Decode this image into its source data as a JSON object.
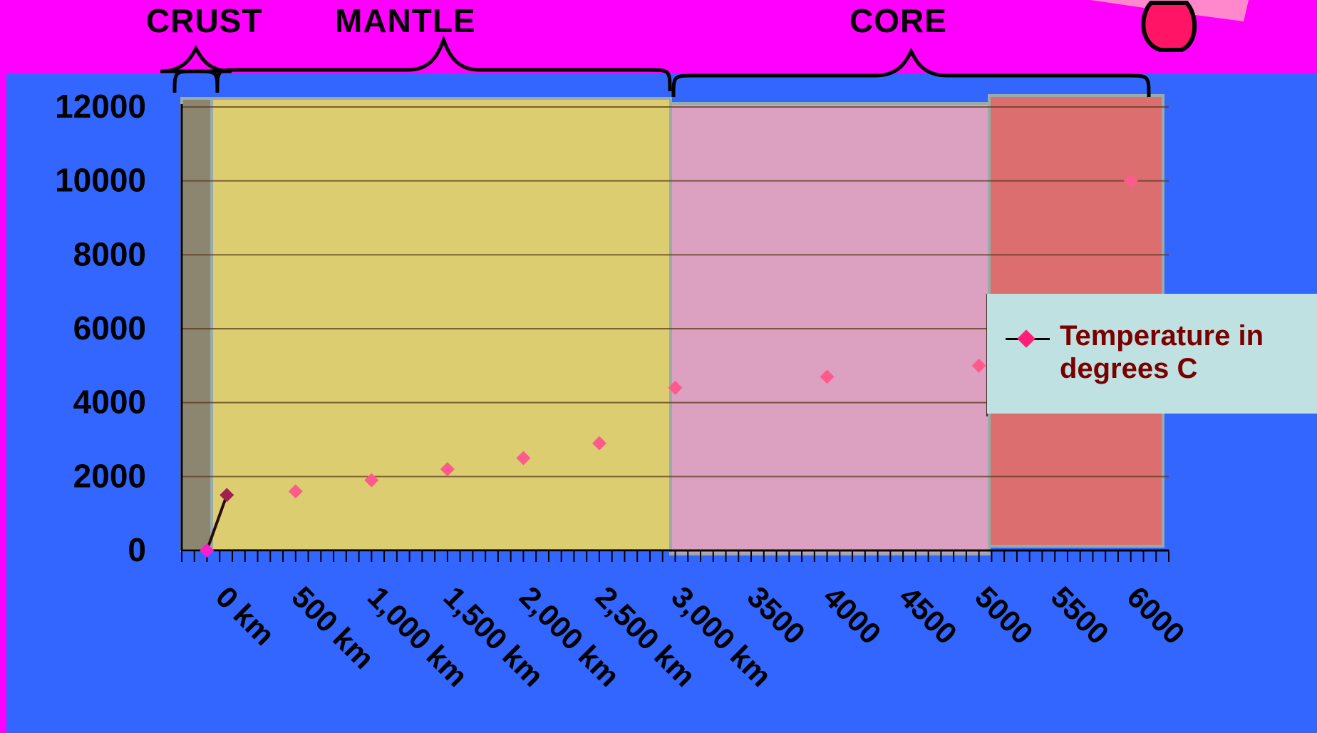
{
  "layers": [
    {
      "name": "CRUST"
    },
    {
      "name": "MANTLE"
    },
    {
      "name": "CORE"
    }
  ],
  "legend": {
    "label": "Temperature in degrees C",
    "color": "#ff1e78"
  },
  "colors": {
    "background": "#3366ff",
    "banner": "#ff00ff",
    "crust_band": "#8c8570",
    "mantle_band": "#dccd70",
    "outer_core_band": "#dca0c0",
    "inner_core_band": "#dc6e70",
    "marker": "#ff5a8c"
  },
  "chart_data": {
    "type": "scatter",
    "title": "",
    "xlabel": "",
    "ylabel": "",
    "categories": [
      "0 km",
      "500 km",
      "1,000 km",
      "1,500 km",
      "2,000 km",
      "2,500 km",
      "3,000 km",
      "3500",
      "4000",
      "4500",
      "5000",
      "5500",
      "6000"
    ],
    "ylim": [
      0,
      12000
    ],
    "yticks": [
      0,
      2000,
      4000,
      6000,
      8000,
      10000,
      12000
    ],
    "grid": true,
    "legend_position": "right",
    "series": [
      {
        "name": "Temperature in degrees C",
        "points": [
          {
            "x": "0 km",
            "y": 0
          },
          {
            "x": "0 km",
            "y": 1500
          },
          {
            "x": "500 km",
            "y": 1600
          },
          {
            "x": "1,000 km",
            "y": 1900
          },
          {
            "x": "1,500 km",
            "y": 2200
          },
          {
            "x": "2,000 km",
            "y": 2500
          },
          {
            "x": "2,500 km",
            "y": 2900
          },
          {
            "x": "3,000 km",
            "y": 4400
          },
          {
            "x": "4000",
            "y": 4700
          },
          {
            "x": "5000",
            "y": 5000
          },
          {
            "x": "6000",
            "y": 10000
          }
        ]
      }
    ],
    "regions": [
      {
        "label": "CRUST",
        "from": "0 km",
        "to": "0 km"
      },
      {
        "label": "MANTLE",
        "from": "0 km",
        "to": "3,000 km"
      },
      {
        "label": "CORE",
        "from": "3,000 km",
        "to": "6000"
      }
    ]
  }
}
